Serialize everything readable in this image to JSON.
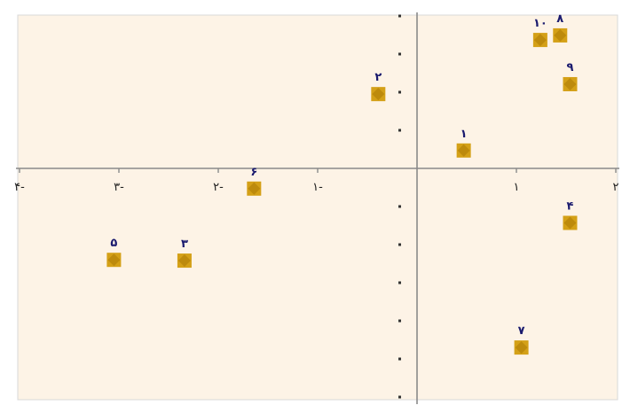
{
  "chart_data": {
    "type": "scatter",
    "title": "",
    "xlabel": "",
    "ylabel": "",
    "xlim": [
      -4,
      2
    ],
    "ylim": [
      -6,
      4
    ],
    "grid": false,
    "legend": "none",
    "x_ticks": [
      {
        "value": -4,
        "label": "۴-"
      },
      {
        "value": -3,
        "label": "۳-"
      },
      {
        "value": -2,
        "label": "۲-"
      },
      {
        "value": -1,
        "label": "۱-"
      },
      {
        "value": 1,
        "label": "۱"
      },
      {
        "value": 2,
        "label": "۲"
      }
    ],
    "y_ticks": [
      4,
      3,
      2,
      1,
      -1,
      -2,
      -3,
      -4,
      -5,
      -6
    ],
    "points": [
      {
        "label": "۱",
        "x": 0.47,
        "y": 0.47
      },
      {
        "label": "۲",
        "x": -0.39,
        "y": 1.95
      },
      {
        "label": "۳",
        "x": -2.34,
        "y": -2.42
      },
      {
        "label": "۴",
        "x": 1.54,
        "y": -1.43
      },
      {
        "label": "۵",
        "x": -3.05,
        "y": -2.4
      },
      {
        "label": "۶",
        "x": -1.64,
        "y": -0.53
      },
      {
        "label": "۷",
        "x": 1.05,
        "y": -4.7
      },
      {
        "label": "۸",
        "x": 1.44,
        "y": 3.49
      },
      {
        "label": "۹",
        "x": 1.54,
        "y": 2.21
      },
      {
        "label": "۱۰",
        "x": 1.24,
        "y": 3.37
      }
    ]
  },
  "colors": {
    "plot_background": "#fdf3e6",
    "axis": "#8a8a8a",
    "tick_label": "#202020",
    "point_fill": "#d4a017",
    "point_inner": "#b8860b",
    "point_label": "#1a1a6e"
  }
}
